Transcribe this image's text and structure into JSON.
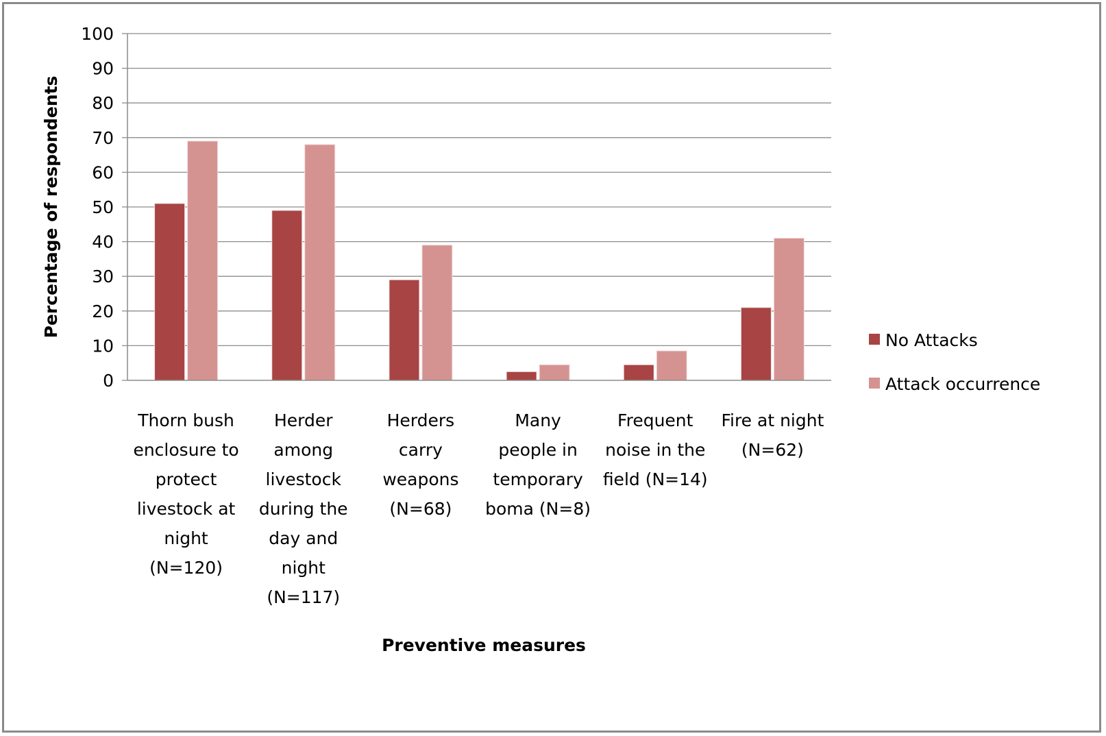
{
  "chart_data": {
    "type": "bar",
    "title": "",
    "xlabel": "Preventive measures",
    "ylabel": "Percentage of respondents",
    "ylim": [
      0,
      100
    ],
    "yticks": [
      0,
      10,
      20,
      30,
      40,
      50,
      60,
      70,
      80,
      90,
      100
    ],
    "grid": true,
    "legend_position": "right",
    "categories": [
      [
        "Thorn bush",
        "enclosure to",
        "protect",
        "livestock at",
        "night",
        "(N=120)"
      ],
      [
        "Herder",
        "among",
        "livestock",
        "during the",
        "day and",
        "night",
        "(N=117)"
      ],
      [
        "Herders",
        "carry",
        "weapons",
        "(N=68)"
      ],
      [
        "Many",
        "people in",
        "temporary",
        "boma (N=8)"
      ],
      [
        "Frequent",
        "noise in the",
        "field (N=14)"
      ],
      [
        "Fire at night",
        "(N=62)"
      ]
    ],
    "series": [
      {
        "name": "No Attacks",
        "color": "#a84444",
        "values": [
          51,
          49,
          29,
          2.5,
          4.5,
          21
        ]
      },
      {
        "name": "Attack occurrence",
        "color": "#d49391",
        "values": [
          69,
          68,
          39,
          4.5,
          8.5,
          41
        ]
      }
    ]
  }
}
